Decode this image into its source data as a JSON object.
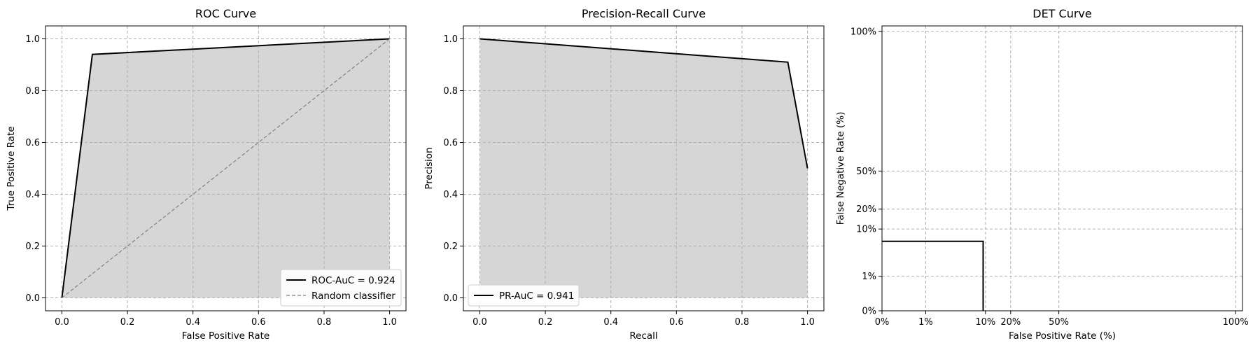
{
  "chart_data": [
    {
      "type": "line",
      "title": "ROC Curve",
      "xlabel": "False Positive Rate",
      "ylabel": "True Positive Rate",
      "xlim": [
        -0.05,
        1.05
      ],
      "ylim": [
        -0.05,
        1.05
      ],
      "ticks": {
        "x": [
          0.0,
          0.2,
          0.4,
          0.6,
          0.8,
          1.0
        ],
        "x_labels": [
          "0.0",
          "0.2",
          "0.4",
          "0.6",
          "0.8",
          "1.0"
        ],
        "y": [
          0.0,
          0.2,
          0.4,
          0.6,
          0.8,
          1.0
        ],
        "y_labels": [
          "0.0",
          "0.2",
          "0.4",
          "0.6",
          "0.8",
          "1.0"
        ]
      },
      "grid": true,
      "legend_position": "lower-right",
      "series": [
        {
          "name": "ROC-AuC = 0.924",
          "x": [
            0.0,
            0.093,
            1.0
          ],
          "y": [
            0.0,
            0.94,
            1.0
          ],
          "style": "solid",
          "color": "#000000",
          "fill": true
        },
        {
          "name": "Random classifier",
          "x": [
            0.0,
            1.0
          ],
          "y": [
            0.0,
            1.0
          ],
          "style": "dashed",
          "color": "#808080"
        }
      ],
      "fill_color": "#d6d6d6"
    },
    {
      "type": "line",
      "title": "Precision-Recall Curve",
      "xlabel": "Recall",
      "ylabel": "Precision",
      "xlim": [
        -0.05,
        1.05
      ],
      "ylim": [
        -0.05,
        1.05
      ],
      "ticks": {
        "x": [
          0.0,
          0.2,
          0.4,
          0.6,
          0.8,
          1.0
        ],
        "x_labels": [
          "0.0",
          "0.2",
          "0.4",
          "0.6",
          "0.8",
          "1.0"
        ],
        "y": [
          0.0,
          0.2,
          0.4,
          0.6,
          0.8,
          1.0
        ],
        "y_labels": [
          "0.0",
          "0.2",
          "0.4",
          "0.6",
          "0.8",
          "1.0"
        ]
      },
      "grid": true,
      "legend_position": "lower-left",
      "series": [
        {
          "name": "PR-AuC = 0.941",
          "x": [
            0.0,
            0.94,
            1.0
          ],
          "y": [
            1.0,
            0.91,
            0.5
          ],
          "style": "solid",
          "color": "#000000",
          "fill": true
        }
      ],
      "fill_color": "#d6d6d6"
    },
    {
      "type": "line",
      "title": "DET Curve",
      "xlabel": "False Positive Rate (%)",
      "ylabel": "False Negative Rate (%)",
      "scale": "probit",
      "ticks": {
        "x": [
          0.001,
          0.01,
          0.1,
          0.2,
          0.5,
          0.999
        ],
        "x_labels": [
          "0%",
          "1%",
          "10%",
          "20%",
          "50%",
          "100%"
        ],
        "y": [
          0.001,
          0.01,
          0.1,
          0.2,
          0.5,
          0.999
        ],
        "y_labels": [
          "0%",
          "1%",
          "10%",
          "20%",
          "50%",
          "100%"
        ]
      },
      "grid": true,
      "series": [
        {
          "x": [
            0.001,
            0.093,
            0.093
          ],
          "y": [
            0.06,
            0.06,
            0.001
          ],
          "style": "solid",
          "color": "#000000"
        }
      ]
    }
  ]
}
